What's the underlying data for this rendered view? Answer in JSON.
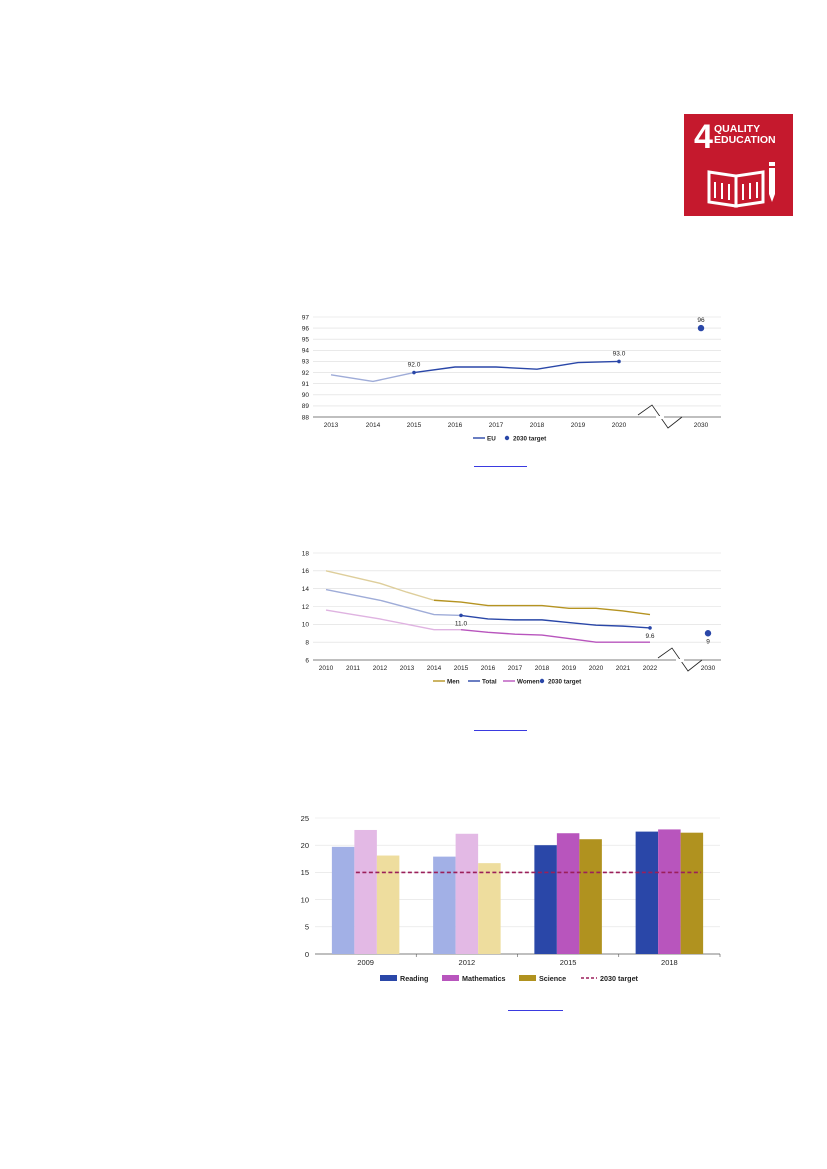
{
  "sdg_badge": {
    "number": "4",
    "line1": "QUALITY",
    "line2": "EDUCATION",
    "color": "#c5192d"
  },
  "chart_data": [
    {
      "type": "line",
      "x": [
        "2013",
        "2014",
        "2015",
        "2016",
        "2017",
        "2018",
        "2019",
        "2020",
        "2030"
      ],
      "series": [
        {
          "name": "EU",
          "values": [
            91.8,
            91.2,
            92.0,
            92.5,
            92.5,
            92.3,
            92.9,
            93.0,
            null
          ],
          "color": "#2a47a8"
        },
        {
          "name": "2030 target",
          "values": [
            null,
            null,
            null,
            null,
            null,
            null,
            null,
            null,
            96
          ],
          "color": "#2a47a8"
        }
      ],
      "data_labels": [
        {
          "x": "2015",
          "text": "92.0"
        },
        {
          "x": "2020",
          "text": "93.0"
        },
        {
          "x": "2030",
          "text": "96"
        }
      ],
      "yticks": [
        "88",
        "89",
        "90",
        "91",
        "92",
        "93",
        "94",
        "95",
        "96",
        "97"
      ],
      "ylim": [
        88,
        97
      ],
      "legend_position": "bottom",
      "grid": true
    },
    {
      "type": "line",
      "x": [
        "2010",
        "2011",
        "2012",
        "2013",
        "2014",
        "2015",
        "2016",
        "2017",
        "2018",
        "2019",
        "2020",
        "2021",
        "2022",
        "2030"
      ],
      "series": [
        {
          "name": "Men",
          "values": [
            16.0,
            15.3,
            14.6,
            13.6,
            12.7,
            12.5,
            12.1,
            12.1,
            12.1,
            11.8,
            11.8,
            11.5,
            11.1,
            null
          ],
          "color": "#b59321"
        },
        {
          "name": "Total",
          "values": [
            13.9,
            13.3,
            12.7,
            11.9,
            11.1,
            11.0,
            10.6,
            10.5,
            10.5,
            10.2,
            9.9,
            9.8,
            9.6,
            null
          ],
          "color": "#2a47a8"
        },
        {
          "name": "Women",
          "values": [
            11.6,
            11.1,
            10.6,
            10.0,
            9.4,
            9.4,
            9.1,
            8.9,
            8.8,
            8.4,
            8.0,
            8.0,
            8.0,
            null
          ],
          "color": "#b855bd"
        },
        {
          "name": "2030 target",
          "values": [
            null,
            null,
            null,
            null,
            null,
            null,
            null,
            null,
            null,
            null,
            null,
            null,
            null,
            9
          ],
          "color": "#2a47a8"
        }
      ],
      "data_labels": [
        {
          "x": "2015",
          "text": "11.0"
        },
        {
          "x": "2022",
          "text": "9.6"
        },
        {
          "x": "2030",
          "text": "9"
        }
      ],
      "yticks": [
        "6",
        "8",
        "10",
        "12",
        "14",
        "16",
        "18"
      ],
      "ylim": [
        6,
        18
      ],
      "legend_position": "bottom",
      "grid": true
    },
    {
      "type": "bar",
      "categories": [
        "2009",
        "2012",
        "2015",
        "2018"
      ],
      "series": [
        {
          "name": "Reading",
          "values": [
            19.7,
            17.9,
            20.0,
            22.5
          ],
          "color": "#2a47a8",
          "faded_color": "#a2b0e6"
        },
        {
          "name": "Mathematics",
          "values": [
            22.8,
            22.1,
            22.2,
            22.9
          ],
          "color": "#b855bd",
          "faded_color": "#e3b9e5"
        },
        {
          "name": "Science",
          "values": [
            18.1,
            16.7,
            21.1,
            22.3
          ],
          "color": "#b0921f",
          "faded_color": "#eedd9e"
        },
        {
          "name": "2030 target",
          "values": [
            15,
            15,
            15,
            15
          ],
          "color": "#9b1f5a"
        }
      ],
      "yticks": [
        "0",
        "5",
        "10",
        "15",
        "20",
        "25"
      ],
      "ylim": [
        0,
        25
      ],
      "legend_position": "bottom",
      "grid": true
    }
  ]
}
